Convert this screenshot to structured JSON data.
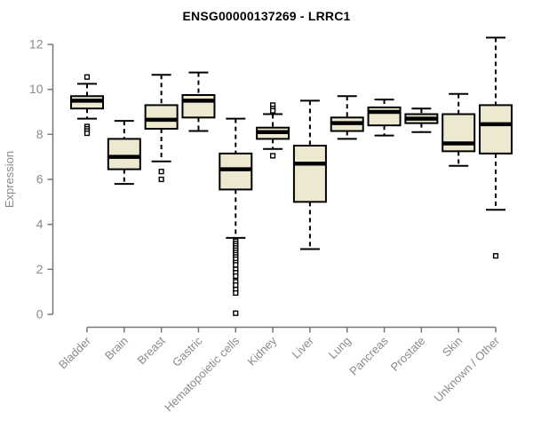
{
  "header": {
    "title": "ENSG00000137269 - LRRC1"
  },
  "chart_data": {
    "type": "boxplot",
    "title": "ENSG00000137269 - LRRC1",
    "xlabel": "",
    "ylabel": "Expression",
    "ylim": [
      0,
      12
    ],
    "yticks": [
      0,
      2,
      4,
      6,
      8,
      10,
      12
    ],
    "grid": false,
    "legend": "none",
    "colors": {
      "box_fill": "#EDE8D0",
      "box_stroke": "#000000",
      "axis": "#777777",
      "tick_labels": "#8a8a8a",
      "title": "#000000",
      "background": "#ffffff"
    },
    "categories": [
      "Bladder",
      "Brain",
      "Breast",
      "Gastric",
      "Hematopoietic cells",
      "Kidney",
      "Liver",
      "Lung",
      "Pancreas",
      "Prostate",
      "Skin",
      "Unknown / Other"
    ],
    "series": [
      {
        "name": "Bladder",
        "q1": 9.15,
        "median": 9.5,
        "q3": 9.7,
        "whisker_low": 8.7,
        "whisker_high": 10.25,
        "outliers": [
          10.55,
          8.35,
          8.25,
          8.15,
          8.05
        ]
      },
      {
        "name": "Brain",
        "q1": 6.45,
        "median": 7.0,
        "q3": 7.8,
        "whisker_low": 5.8,
        "whisker_high": 8.6,
        "outliers": []
      },
      {
        "name": "Breast",
        "q1": 8.25,
        "median": 8.65,
        "q3": 9.3,
        "whisker_low": 6.8,
        "whisker_high": 10.65,
        "outliers": [
          6.35,
          6.0
        ]
      },
      {
        "name": "Gastric",
        "q1": 8.75,
        "median": 9.5,
        "q3": 9.75,
        "whisker_low": 8.15,
        "whisker_high": 10.75,
        "outliers": []
      },
      {
        "name": "Hematopoietic cells",
        "q1": 5.55,
        "median": 6.45,
        "q3": 7.15,
        "whisker_low": 3.4,
        "whisker_high": 8.7,
        "outliers": [
          3.25,
          3.15,
          3.05,
          2.95,
          2.85,
          2.75,
          2.65,
          2.55,
          2.45,
          2.3,
          2.2,
          2.0,
          1.85,
          1.7,
          1.45,
          1.3,
          1.1,
          0.95,
          0.05
        ]
      },
      {
        "name": "Kidney",
        "q1": 7.8,
        "median": 8.1,
        "q3": 8.3,
        "whisker_low": 7.35,
        "whisker_high": 8.9,
        "outliers": [
          9.3,
          9.15,
          9.05,
          7.05
        ]
      },
      {
        "name": "Liver",
        "q1": 5.0,
        "median": 6.7,
        "q3": 7.5,
        "whisker_low": 2.9,
        "whisker_high": 9.5,
        "outliers": []
      },
      {
        "name": "Lung",
        "q1": 8.15,
        "median": 8.5,
        "q3": 8.75,
        "whisker_low": 7.8,
        "whisker_high": 9.7,
        "outliers": []
      },
      {
        "name": "Pancreas",
        "q1": 8.4,
        "median": 9.0,
        "q3": 9.2,
        "whisker_low": 7.95,
        "whisker_high": 9.55,
        "outliers": []
      },
      {
        "name": "Prostate",
        "q1": 8.5,
        "median": 8.7,
        "q3": 8.9,
        "whisker_low": 8.1,
        "whisker_high": 9.15,
        "outliers": []
      },
      {
        "name": "Skin",
        "q1": 7.25,
        "median": 7.6,
        "q3": 8.9,
        "whisker_low": 6.6,
        "whisker_high": 9.8,
        "outliers": []
      },
      {
        "name": "Unknown / Other",
        "q1": 7.15,
        "median": 8.45,
        "q3": 9.3,
        "whisker_low": 4.65,
        "whisker_high": 12.3,
        "outliers": [
          2.6
        ]
      }
    ]
  }
}
